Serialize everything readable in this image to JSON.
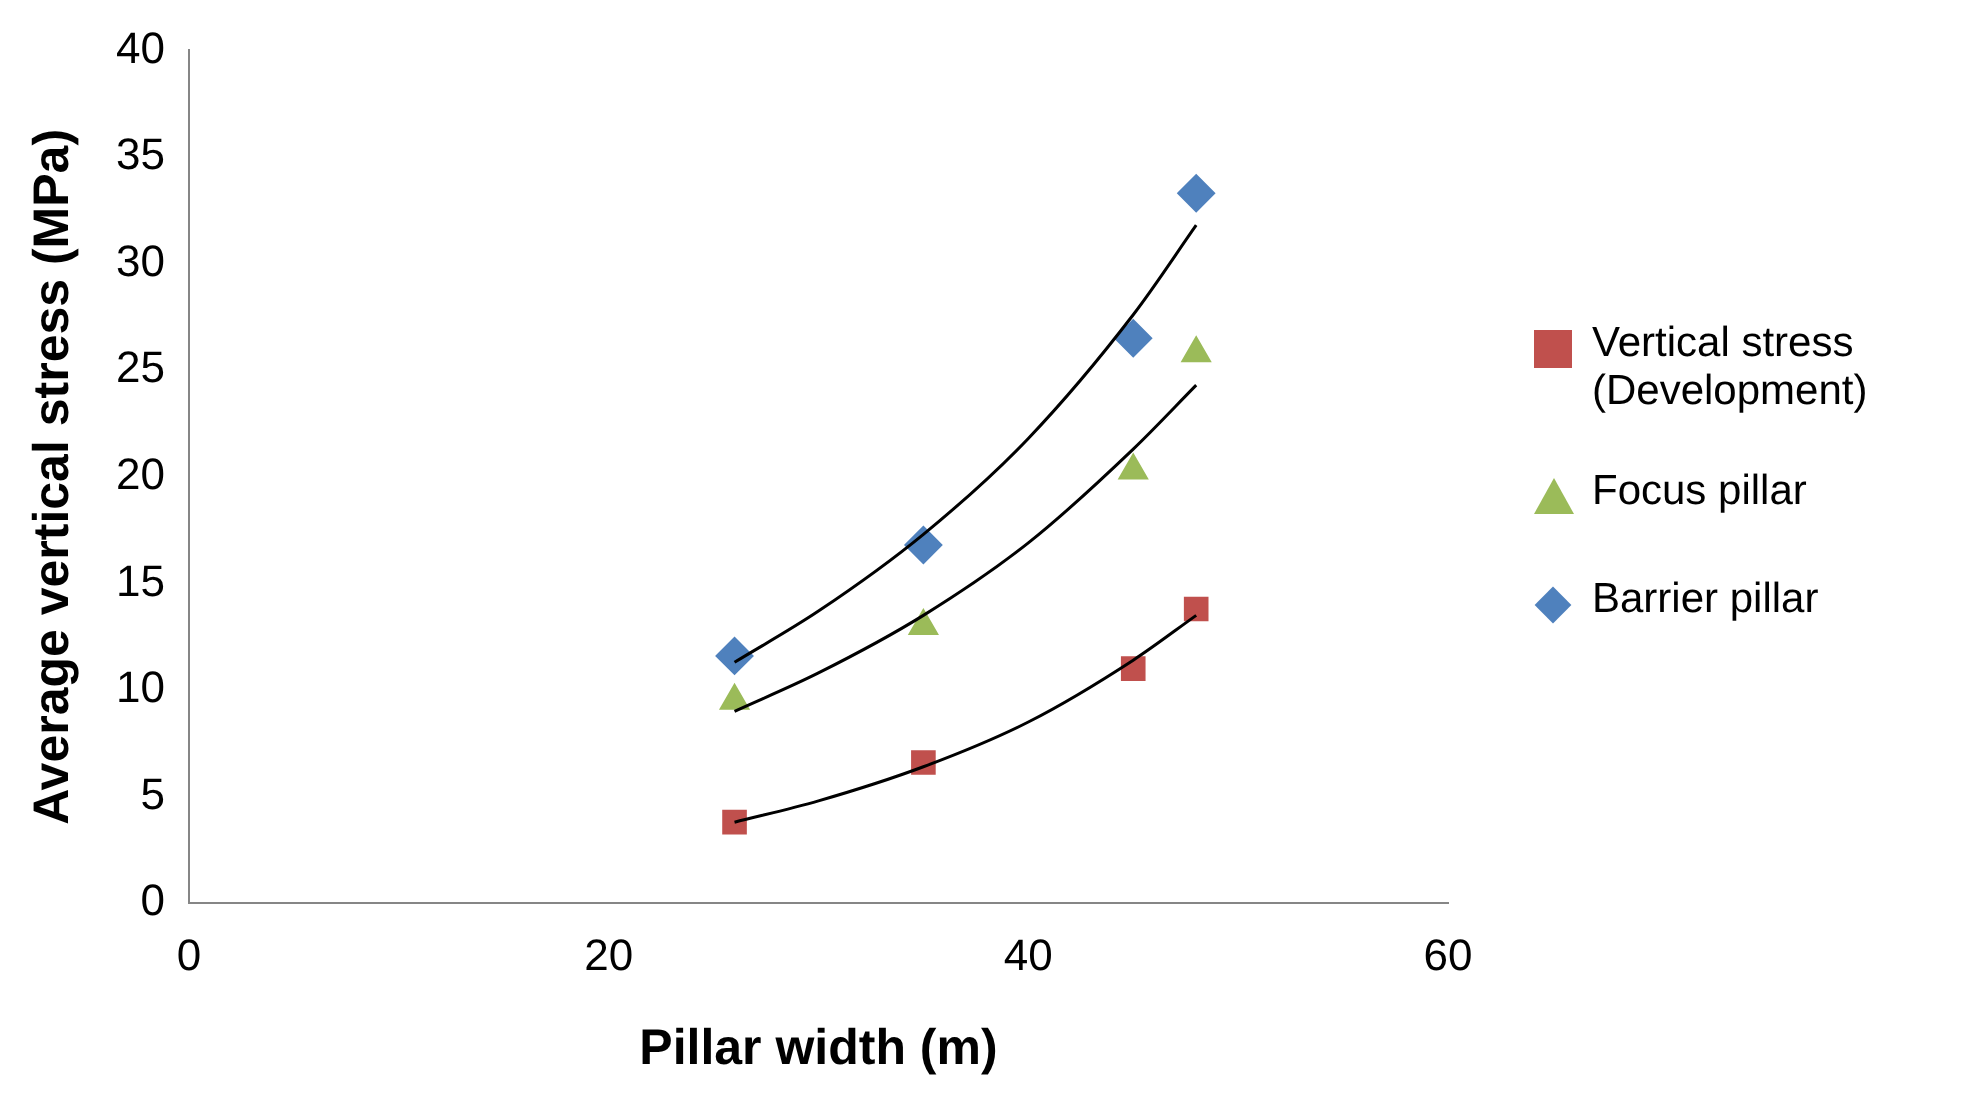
{
  "chart_data": {
    "type": "scatter",
    "xlabel": "Pillar width (m)",
    "ylabel": "Average vertical stress (MPa)",
    "xlim": [
      0,
      60
    ],
    "xticks": [
      0,
      20,
      40,
      60
    ],
    "ylim": [
      0,
      40
    ],
    "yticks": [
      0,
      5,
      10,
      15,
      20,
      25,
      30,
      35,
      40
    ],
    "grid": false,
    "legend": "right",
    "series": [
      {
        "name": "Vertical stress (Development)",
        "color": "#c0504d",
        "marker": "square",
        "x": [
          26,
          35,
          45,
          48
        ],
        "values": [
          3.8,
          6.6,
          11,
          13.8
        ]
      },
      {
        "name": "Focus pillar",
        "color": "#9bbb59",
        "marker": "triangle",
        "x": [
          26,
          35,
          45,
          48
        ],
        "values": [
          9.5,
          13,
          20.3,
          25.8
        ]
      },
      {
        "name": "Barrier pillar",
        "color": "#4f81bd",
        "marker": "diamond",
        "x": [
          26,
          35,
          45,
          48
        ],
        "values": [
          11.6,
          16.8,
          26.5,
          33.3
        ]
      },
      {
        "type": "line",
        "color": "#000000",
        "marker": "none",
        "x": [
          26,
          30,
          35,
          40,
          45,
          48
        ],
        "values": [
          3.8,
          4.8,
          6.4,
          8.5,
          11.4,
          13.5
        ]
      },
      {
        "type": "line",
        "color": "#000000",
        "marker": "none",
        "x": [
          26,
          30,
          35,
          40,
          45,
          48
        ],
        "values": [
          9.0,
          10.8,
          13.5,
          16.9,
          21.3,
          24.3
        ]
      },
      {
        "type": "line",
        "color": "#000000",
        "marker": "none",
        "x": [
          26,
          30,
          35,
          40,
          45,
          48
        ],
        "values": [
          11.3,
          13.7,
          17.3,
          21.8,
          27.6,
          31.8
        ]
      }
    ]
  }
}
